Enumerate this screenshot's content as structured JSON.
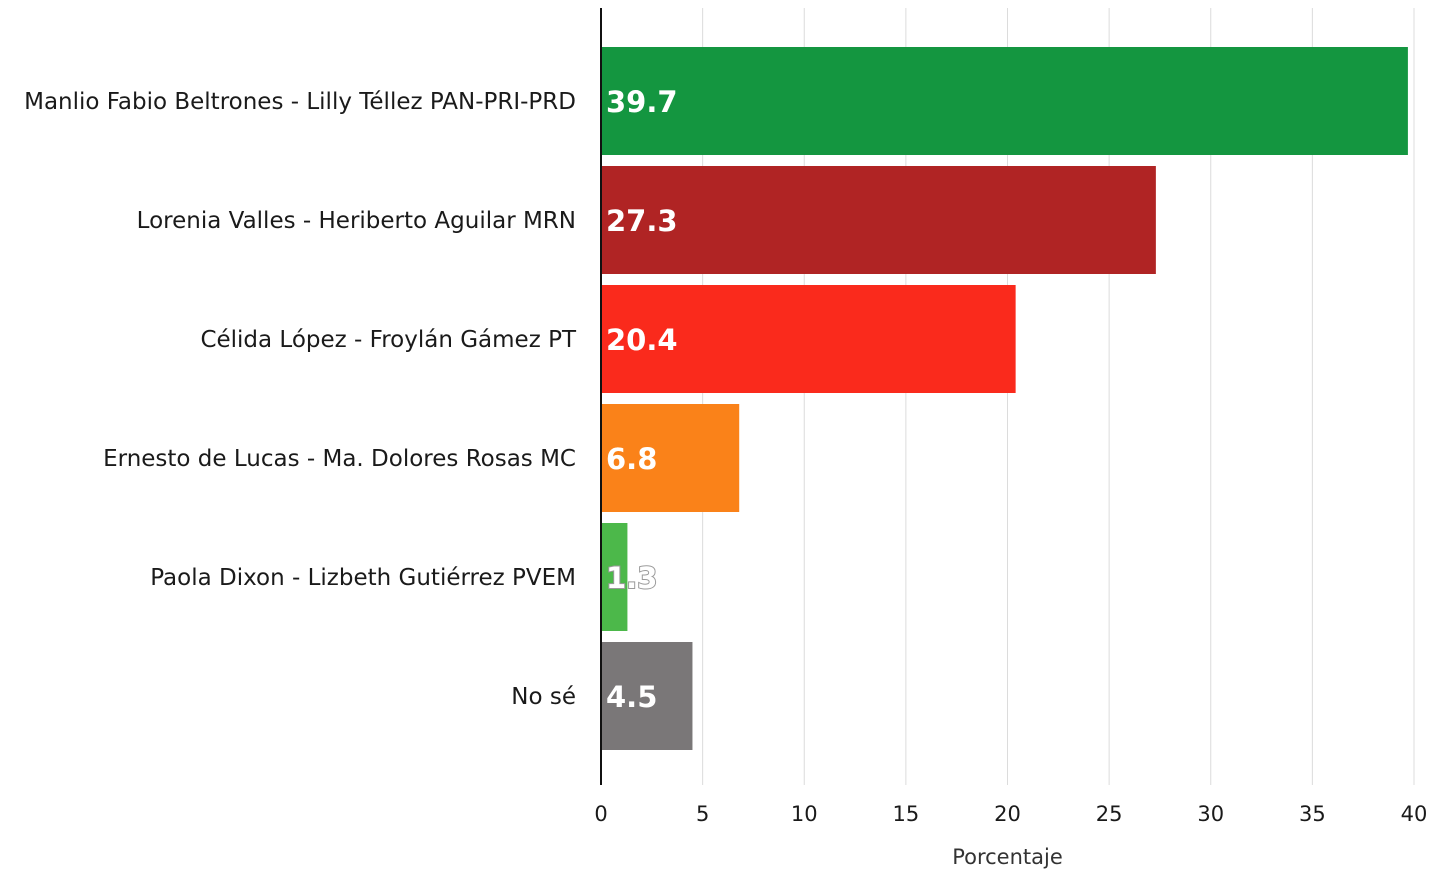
{
  "chart_data": {
    "type": "bar",
    "orientation": "horizontal",
    "categories": [
      "Manlio Fabio Beltrones - Lilly Téllez PAN-PRI-PRD",
      "Lorenia Valles - Heriberto Aguilar MRN",
      "Célida López - Froylán Gámez PT",
      "Ernesto de Lucas - Ma. Dolores Rosas MC",
      "Paola Dixon - Lizbeth Gutiérrez PVEM",
      "No sé"
    ],
    "values": [
      39.7,
      27.3,
      20.4,
      6.8,
      1.3,
      4.5
    ],
    "value_labels": [
      "39.7",
      "27.3",
      "20.4",
      "6.8",
      "1.3",
      "4.5"
    ],
    "colors": [
      "#149640",
      "#b02424",
      "#fa2a1c",
      "#fa8219",
      "#4cb84a",
      "#7a7778"
    ],
    "xlabel": "Porcentaje",
    "ylabel": "",
    "xlim": [
      0,
      40
    ],
    "xticks": [
      0,
      5,
      10,
      15,
      20,
      25,
      30,
      35,
      40
    ],
    "grid": "vertical",
    "legend": "none"
  }
}
